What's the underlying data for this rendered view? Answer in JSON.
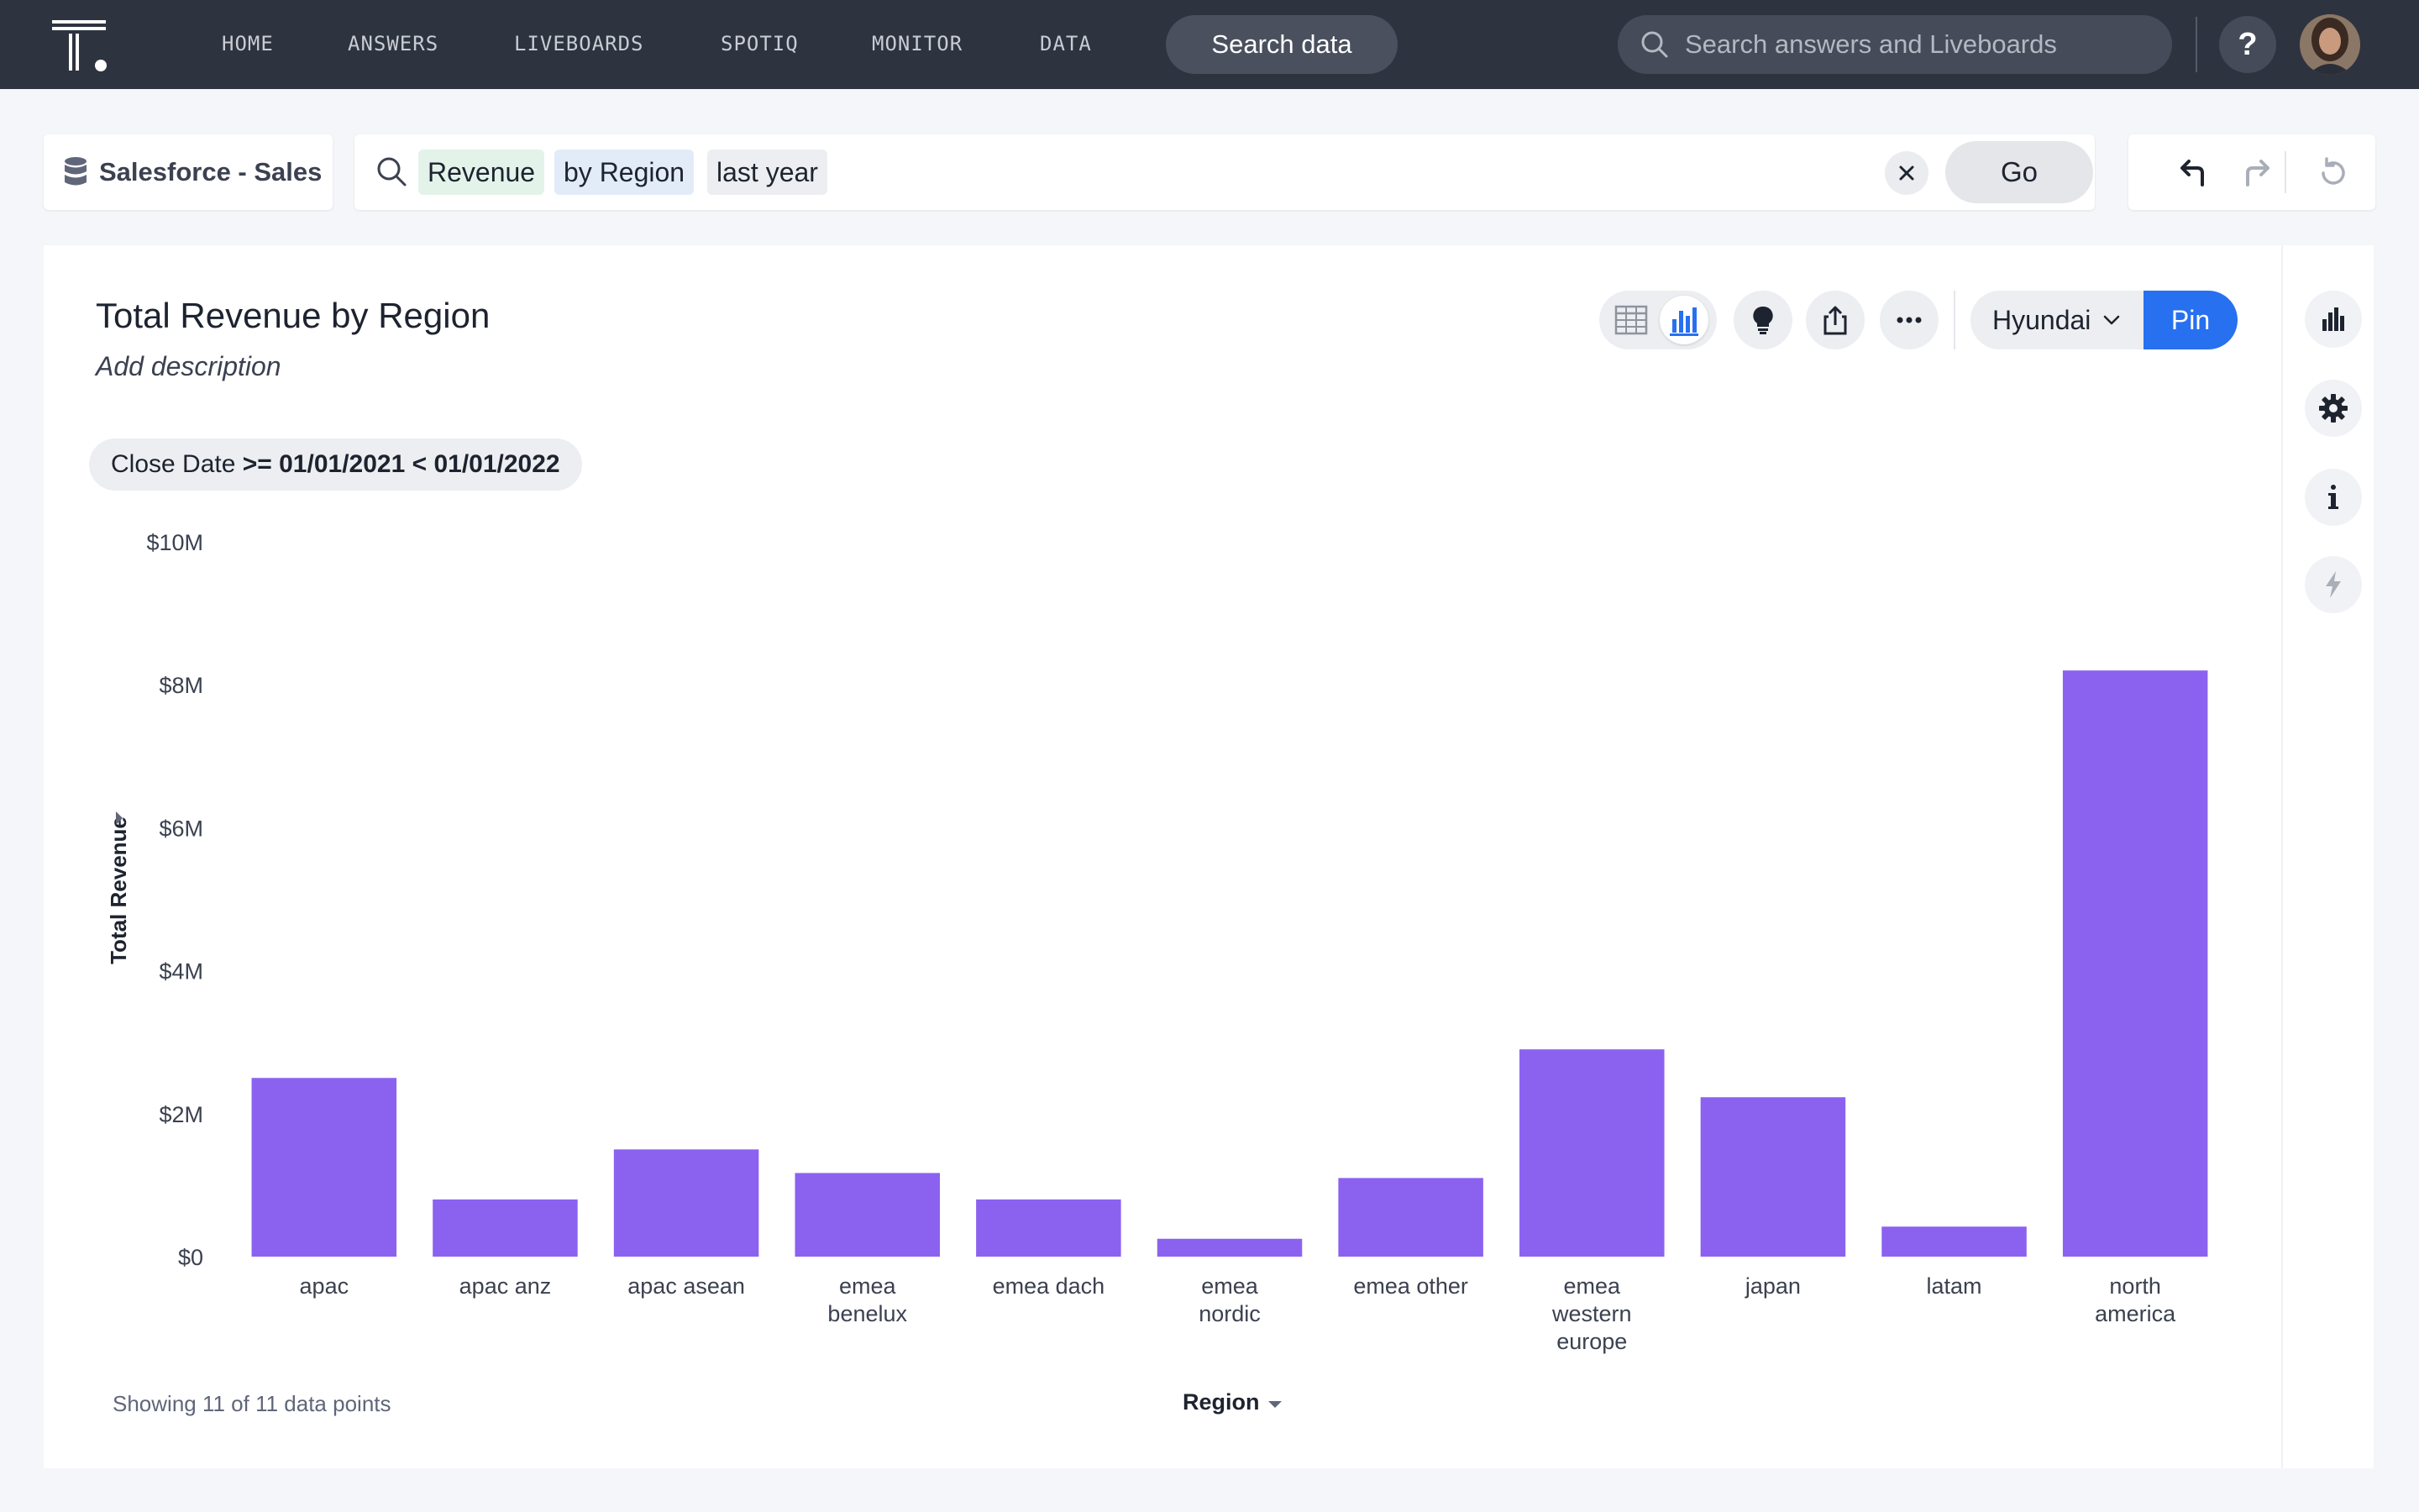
{
  "nav": {
    "items": [
      "HOME",
      "ANSWERS",
      "LIVEBOARDS",
      "SPOTIQ",
      "MONITOR",
      "DATA"
    ],
    "search_data_label": "Search data",
    "global_search_placeholder": "Search answers and Liveboards",
    "help_label": "?"
  },
  "search": {
    "source_label": "Salesforce - Sales",
    "tokens": {
      "measure": "Revenue",
      "attribute": "by Region",
      "keyword": "last year"
    },
    "go_label": "Go"
  },
  "answer": {
    "title": "Total Revenue by Region",
    "description": "Add description",
    "filter_field": "Close Date",
    "filter_value": ">= 01/01/2021 < 01/01/2022",
    "liveboard_select": "Hyundai",
    "pin_label": "Pin",
    "footer_count": "Showing 11 of 11 data points"
  },
  "colors": {
    "bar": "#8b62f0",
    "pin": "#2770ef",
    "nav_bg": "#2e3340"
  },
  "chart_data": {
    "type": "bar",
    "xlabel": "Region",
    "ylabel": "Total Revenue",
    "ylim": [
      0,
      10000000
    ],
    "yticks": [
      "$0",
      "$2M",
      "$4M",
      "$6M",
      "$8M",
      "$10M"
    ],
    "categories": [
      "apac",
      "apac anz",
      "apac asean",
      "emea benelux",
      "emea dach",
      "emea nordic",
      "emea other",
      "emea western europe",
      "japan",
      "latam",
      "north america"
    ],
    "category_lines": [
      [
        "apac"
      ],
      [
        "apac anz"
      ],
      [
        "apac asean"
      ],
      [
        "emea",
        "benelux"
      ],
      [
        "emea dach"
      ],
      [
        "emea",
        "nordic"
      ],
      [
        "emea other"
      ],
      [
        "emea",
        "western",
        "europe"
      ],
      [
        "japan"
      ],
      [
        "latam"
      ],
      [
        "north",
        "america"
      ]
    ],
    "values": [
      2500000,
      800000,
      1500000,
      1170000,
      800000,
      250000,
      1100000,
      2900000,
      2230000,
      420000,
      8200000
    ]
  }
}
